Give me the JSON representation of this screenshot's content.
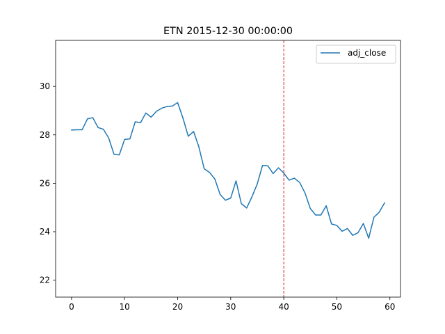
{
  "chart_data": {
    "type": "line",
    "title": "ETN 2015-12-30 00:00:00",
    "xlabel": "",
    "ylabel": "",
    "xlim": [
      -3,
      62
    ],
    "ylim": [
      21.3,
      31.9
    ],
    "x_ticks": [
      0,
      10,
      20,
      30,
      40,
      50,
      60
    ],
    "y_ticks": [
      22,
      24,
      26,
      28,
      30
    ],
    "x_tick_labels": [
      "0",
      "10",
      "20",
      "30",
      "40",
      "50",
      "60"
    ],
    "y_tick_labels": [
      "22",
      "24",
      "26",
      "28",
      "30"
    ],
    "grid": false,
    "legend": {
      "placement": "top-right",
      "entries": [
        "adj_close"
      ]
    },
    "marker_line": {
      "x": 40,
      "style": "dashed",
      "color": "#d62728"
    },
    "series": [
      {
        "name": "adj_close",
        "color": "#1f77b4",
        "x": [
          0,
          1,
          2,
          3,
          4,
          5,
          6,
          7,
          8,
          9,
          10,
          11,
          12,
          13,
          14,
          15,
          16,
          17,
          18,
          19,
          20,
          21,
          22,
          23,
          24,
          25,
          26,
          27,
          28,
          29,
          30,
          31,
          32,
          33,
          34,
          35,
          36,
          37,
          38,
          39,
          40,
          41,
          42,
          43,
          44,
          45,
          46,
          47,
          48,
          49,
          50,
          51,
          52,
          53,
          54,
          55,
          56,
          57,
          58,
          59
        ],
        "values": [
          28.2,
          28.21,
          28.21,
          28.66,
          28.71,
          28.3,
          28.23,
          27.87,
          27.2,
          27.17,
          27.81,
          27.83,
          28.54,
          28.5,
          28.9,
          28.73,
          28.97,
          29.1,
          29.17,
          29.19,
          29.33,
          28.69,
          27.94,
          28.14,
          27.5,
          26.6,
          26.45,
          26.18,
          25.54,
          25.3,
          25.39,
          26.1,
          25.16,
          24.98,
          25.44,
          25.97,
          26.74,
          26.72,
          26.4,
          26.64,
          26.42,
          26.13,
          26.21,
          26.03,
          25.6,
          24.96,
          24.69,
          24.69,
          25.07,
          24.32,
          24.26,
          24.02,
          24.13,
          23.85,
          23.96,
          24.34,
          23.73,
          24.6,
          24.81,
          25.19
        ]
      }
    ]
  }
}
